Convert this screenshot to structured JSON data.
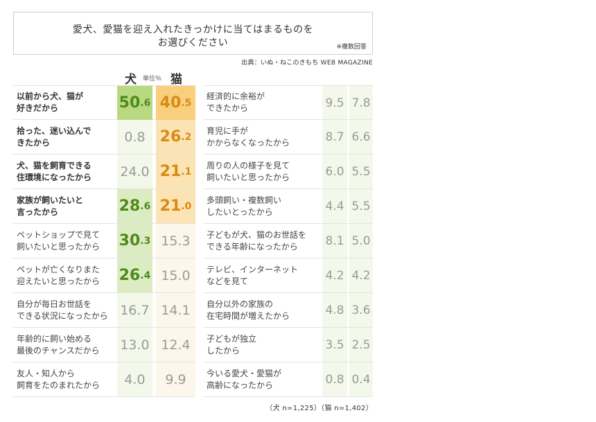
{
  "title": {
    "line1": "愛犬、愛猫を迎え入れたきっかけに当てはまるものを",
    "line2": "お選びください",
    "note": "※複数回答"
  },
  "source": "出典：いぬ・ねこのきもち WEB MAGAZINE",
  "header": {
    "dog": "犬",
    "unit": "単位％",
    "cat": "猫"
  },
  "footer": "（犬 n=1,225）（猫 n=1,402）",
  "colors": {
    "dog_highlight": "#b8d982",
    "cat_highlight": "#f8cf7c",
    "dog_text": "#4f8a1c",
    "cat_text": "#d98a13"
  },
  "chart_data": {
    "type": "table",
    "title": "愛犬、愛猫を迎え入れたきっかけに当てはまるものをお選びください",
    "columns": [
      "犬",
      "猫"
    ],
    "unit": "％",
    "rows": [
      {
        "label": "以前から犬、猫が\n好きだから",
        "dog": "50.6",
        "cat": "40.5",
        "bold": true,
        "dog_hl": "hl-dog",
        "cat_hl": "hl-cat"
      },
      {
        "label": "拾った、迷い込んで\nきたから",
        "dog": "0.8",
        "cat": "26.2",
        "bold": true,
        "dog_hl": "",
        "cat_hl": "hl-cat-light"
      },
      {
        "label": "犬、猫を飼育できる\n住環境になったから",
        "dog": "24.0",
        "cat": "21.1",
        "bold": true,
        "dog_hl": "",
        "cat_hl": "hl-cat-light"
      },
      {
        "label": "家族が飼いたいと\n言ったから",
        "dog": "28.6",
        "cat": "21.0",
        "bold": true,
        "dog_hl": "hl-dog-light",
        "cat_hl": "hl-cat-light"
      },
      {
        "label": "ペットショップで見て\n飼いたいと思ったから",
        "dog": "30.3",
        "cat": "15.3",
        "bold": false,
        "dog_hl": "hl-dog-light",
        "cat_hl": ""
      },
      {
        "label": "ペットが亡くなりまた\n迎えたいと思ったから",
        "dog": "26.4",
        "cat": "15.0",
        "bold": false,
        "dog_hl": "hl-dog-light",
        "cat_hl": ""
      },
      {
        "label": "自分が毎日お世話を\nできる状況になったから",
        "dog": "16.7",
        "cat": "14.1",
        "bold": false,
        "dog_hl": "",
        "cat_hl": ""
      },
      {
        "label": "年齢的に飼い始める\n最後のチャンスだから",
        "dog": "13.0",
        "cat": "12.4",
        "bold": false,
        "dog_hl": "",
        "cat_hl": ""
      },
      {
        "label": "友人・知人から\n飼育をたのまれたから",
        "dog": "4.0",
        "cat": "9.9",
        "bold": false,
        "dog_hl": "",
        "cat_hl": ""
      },
      {
        "label": "経済的に余裕が\nできたから",
        "dog": "9.5",
        "cat": "7.8",
        "bold": false,
        "dog_hl": "",
        "cat_hl": ""
      },
      {
        "label": "育児に手が\nかからなくなったから",
        "dog": "8.7",
        "cat": "6.6",
        "bold": false,
        "dog_hl": "",
        "cat_hl": ""
      },
      {
        "label": "周りの人の様子を見て\n飼いたいと思ったから",
        "dog": "6.0",
        "cat": "5.5",
        "bold": false,
        "dog_hl": "",
        "cat_hl": ""
      },
      {
        "label": "多頭飼い・複数飼い\nしたいとったから",
        "dog": "4.4",
        "cat": "5.5",
        "bold": false,
        "dog_hl": "",
        "cat_hl": ""
      },
      {
        "label": "子どもが犬、猫のお世話を\nできる年齢になったから",
        "dog": "8.1",
        "cat": "5.0",
        "bold": false,
        "dog_hl": "",
        "cat_hl": ""
      },
      {
        "label": "テレビ、インターネット\nなどを見て",
        "dog": "4.2",
        "cat": "4.2",
        "bold": false,
        "dog_hl": "",
        "cat_hl": ""
      },
      {
        "label": "自分以外の家族の\n在宅時間が増えたから",
        "dog": "4.8",
        "cat": "3.6",
        "bold": false,
        "dog_hl": "",
        "cat_hl": ""
      },
      {
        "label": "子どもが独立\nしたから",
        "dog": "3.5",
        "cat": "2.5",
        "bold": false,
        "dog_hl": "",
        "cat_hl": ""
      },
      {
        "label": "今いる愛犬・愛猫が\n高齢になったから",
        "dog": "0.8",
        "cat": "0.4",
        "bold": false,
        "dog_hl": "",
        "cat_hl": ""
      }
    ]
  }
}
